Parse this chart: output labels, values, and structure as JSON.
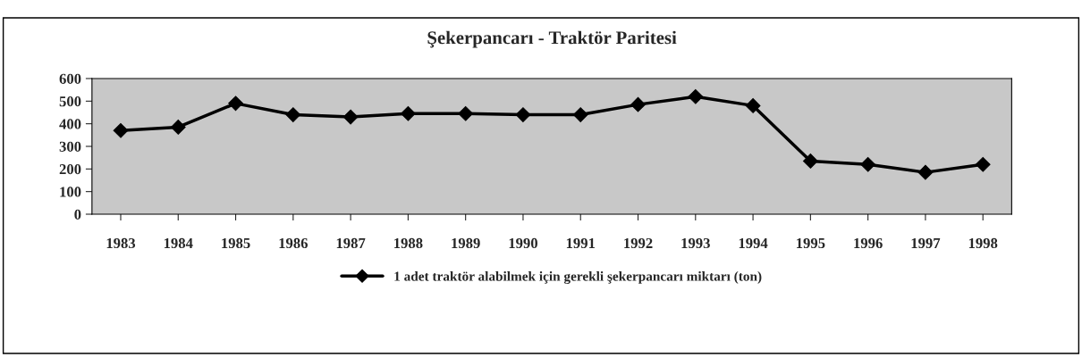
{
  "chart_data": {
    "type": "line",
    "title": "Şekerpancarı - Traktör Paritesi",
    "categories": [
      "1983",
      "1984",
      "1985",
      "1986",
      "1987",
      "1988",
      "1989",
      "1990",
      "1991",
      "1992",
      "1993",
      "1994",
      "1995",
      "1996",
      "1997",
      "1998"
    ],
    "series": [
      {
        "name": "1 adet traktör alabilmek için gerekli şekerpancarı miktarı (ton)",
        "color": "#000000",
        "values": [
          370,
          385,
          490,
          440,
          430,
          445,
          445,
          440,
          440,
          485,
          520,
          480,
          235,
          220,
          185,
          220
        ]
      }
    ],
    "ylim": [
      0,
      600
    ],
    "yticks": [
      0,
      100,
      200,
      300,
      400,
      500,
      600
    ],
    "grid": false,
    "legend": "bottom",
    "marker": "diamond",
    "line_style": "solid"
  }
}
